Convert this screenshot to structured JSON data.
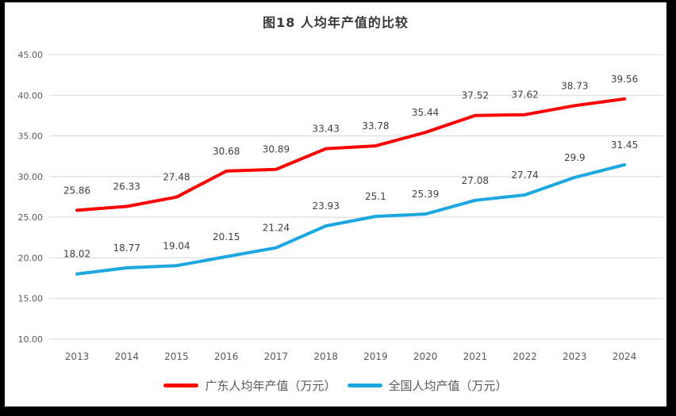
{
  "chart_data": {
    "type": "line",
    "title": "图18 人均年产值的比较",
    "categories": [
      "2013",
      "2014",
      "2015",
      "2016",
      "2017",
      "2018",
      "2019",
      "2020",
      "2021",
      "2022",
      "2023",
      "2024"
    ],
    "series": [
      {
        "name": "广东人均年产值（万元）",
        "color": "#fe0000",
        "values": [
          25.86,
          26.33,
          27.48,
          30.68,
          30.89,
          33.43,
          33.78,
          35.44,
          37.52,
          37.62,
          38.73,
          39.56
        ]
      },
      {
        "name": "全国人均产值（万元）",
        "color": "#1ba7e0",
        "values": [
          18.02,
          18.77,
          19.04,
          20.15,
          21.24,
          23.93,
          25.1,
          25.39,
          27.08,
          27.74,
          29.9,
          31.45
        ]
      }
    ],
    "ylim": [
      10,
      45
    ],
    "yticks": [
      "45.00",
      "40.00",
      "35.00",
      "30.00",
      "25.00",
      "20.00",
      "15.00",
      "10.00"
    ],
    "grid": true,
    "data_labels": true,
    "legend_position": "bottom",
    "colors": {
      "frame": "#000000",
      "background": "#ffffff",
      "gridline": "#d9d9d9",
      "axis_label": "#595959",
      "data_label": "#404040",
      "title": "#383838"
    }
  }
}
